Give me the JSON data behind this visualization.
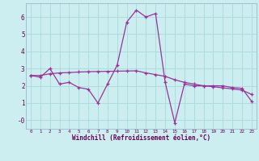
{
  "xlabel": "Windchill (Refroidissement éolien,°C)",
  "background_color": "#cdeef0",
  "grid_color": "#aadddd",
  "line_color": "#993399",
  "x_values": [
    0,
    1,
    2,
    3,
    4,
    5,
    6,
    7,
    8,
    9,
    10,
    11,
    12,
    13,
    14,
    15,
    16,
    17,
    18,
    19,
    20,
    21,
    22,
    23
  ],
  "line1_y": [
    2.6,
    2.5,
    3.0,
    2.1,
    2.2,
    1.9,
    1.8,
    1.0,
    2.1,
    3.2,
    5.7,
    6.4,
    6.0,
    6.2,
    2.2,
    -0.15,
    2.1,
    2.0,
    2.0,
    2.0,
    2.0,
    1.9,
    1.85,
    1.1
  ],
  "line2_y": [
    2.6,
    2.6,
    2.7,
    2.75,
    2.77,
    2.8,
    2.82,
    2.83,
    2.84,
    2.85,
    2.86,
    2.87,
    2.75,
    2.65,
    2.55,
    2.35,
    2.2,
    2.1,
    2.0,
    1.95,
    1.88,
    1.82,
    1.75,
    1.5
  ],
  "ylim": [
    -0.5,
    6.8
  ],
  "xlim": [
    -0.5,
    23.5
  ],
  "yticks": [
    0,
    1,
    2,
    3,
    4,
    5,
    6
  ],
  "ytick_labels": [
    "-0",
    "1",
    "2",
    "3",
    "4",
    "5",
    "6"
  ]
}
